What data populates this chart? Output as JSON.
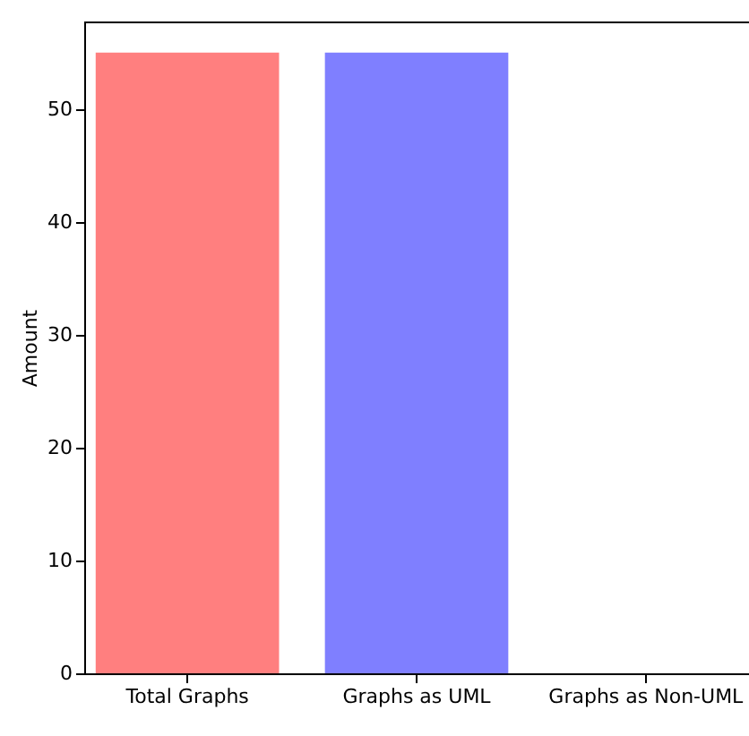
{
  "chart_data": {
    "type": "bar",
    "ylabel": "Amount",
    "categories": [
      "Total Graphs",
      "Graphs as UML",
      "Graphs as Non-UML"
    ],
    "values": [
      55,
      55,
      0
    ],
    "colors": [
      "#ff7f7f",
      "#7f7fff",
      null
    ],
    "ylim": [
      0,
      57.75
    ],
    "yticks": [
      0,
      10,
      20,
      30,
      40,
      50
    ],
    "grid": false
  }
}
